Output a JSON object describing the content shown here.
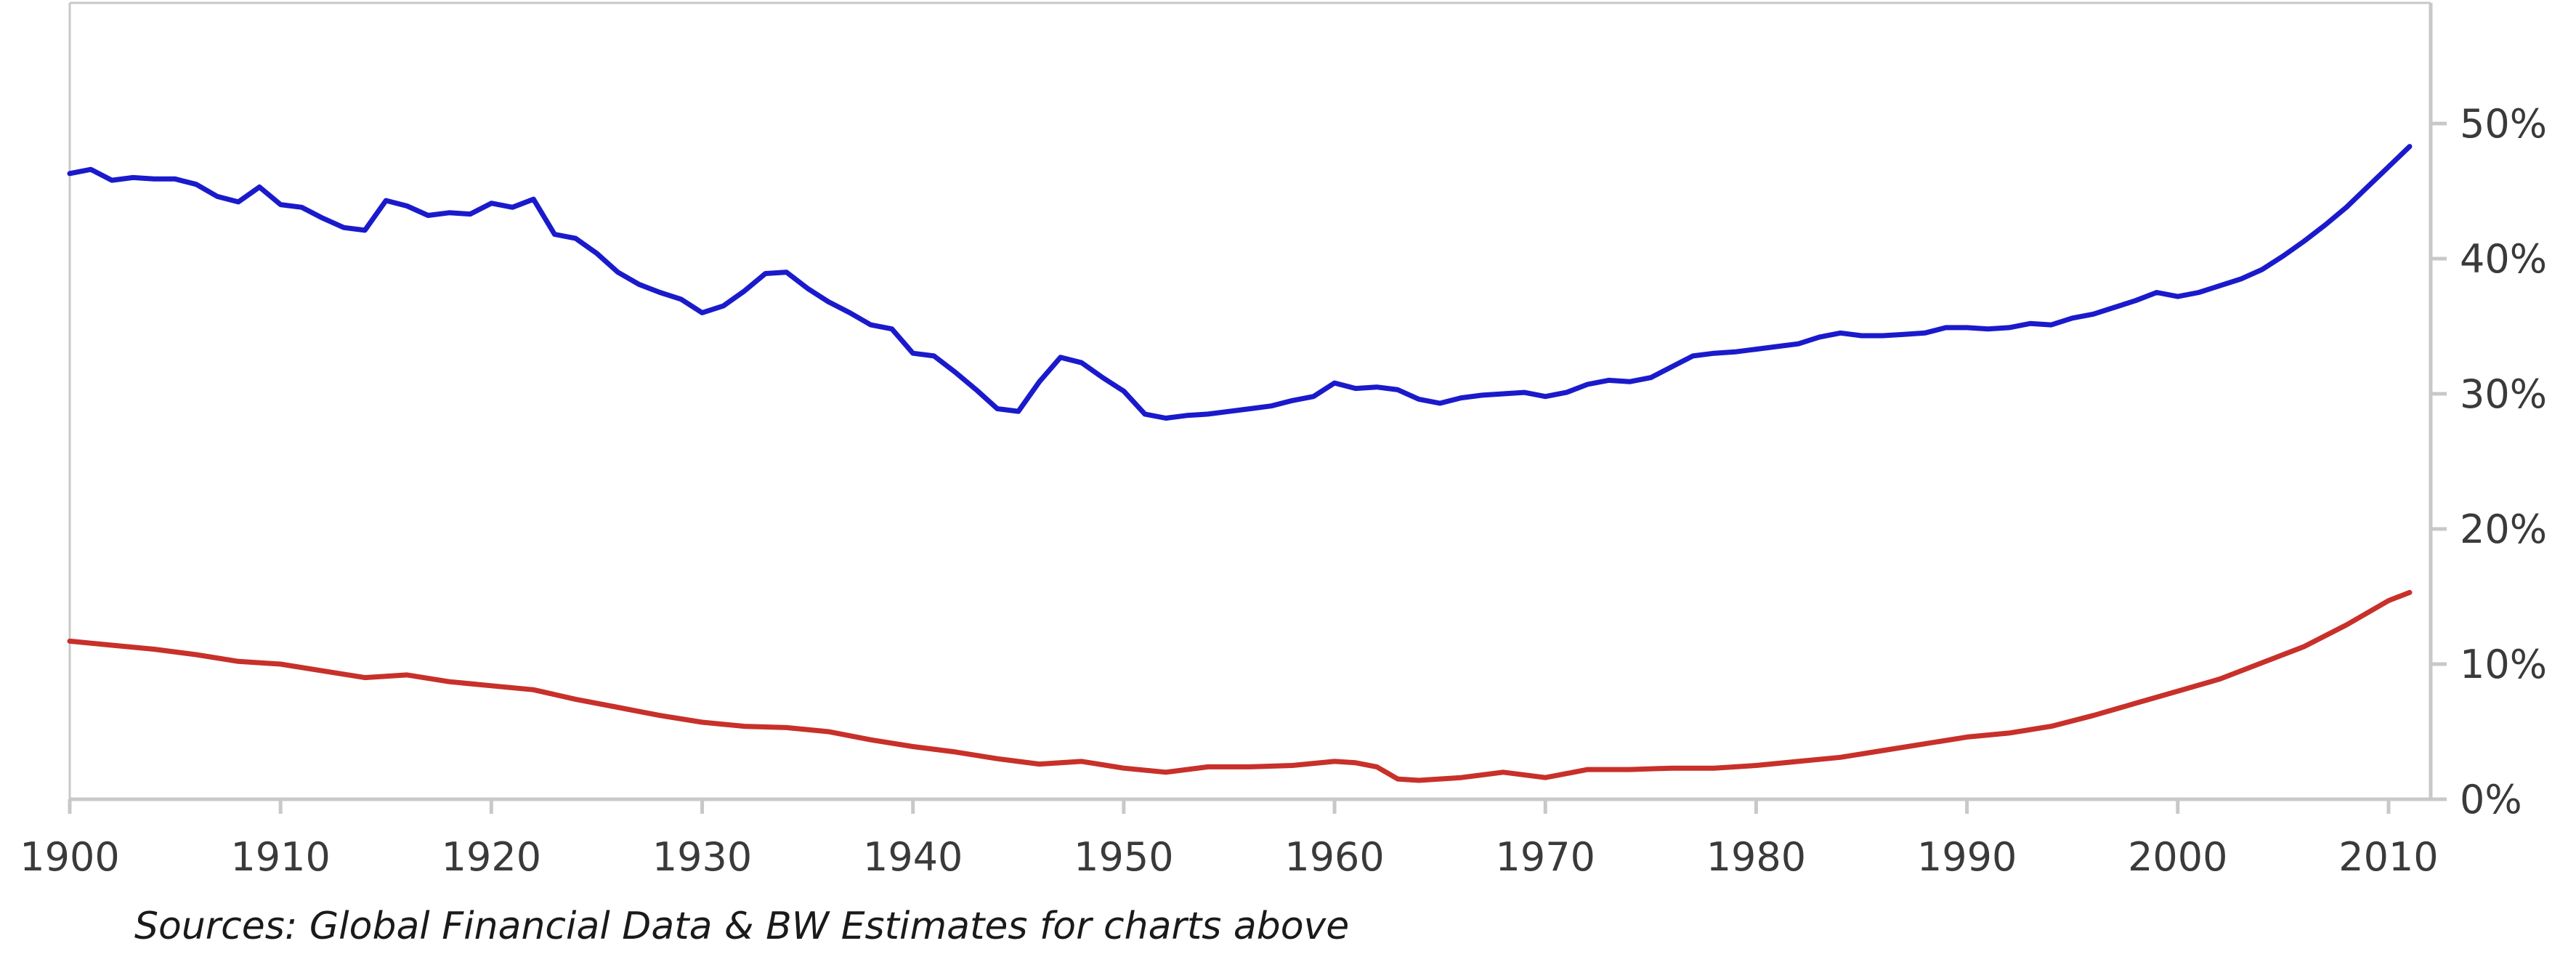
{
  "chart_data": {
    "type": "line",
    "title": "",
    "xlabel": "",
    "ylabel": "",
    "xlim": [
      1900,
      2012
    ],
    "ylim": [
      0,
      50
    ],
    "x_ticks": [
      1900,
      1910,
      1920,
      1930,
      1940,
      1950,
      1960,
      1970,
      1980,
      1990,
      2000,
      2010
    ],
    "x_tick_labels": [
      "1900",
      "1910",
      "1920",
      "1930",
      "1940",
      "1950",
      "1960",
      "1970",
      "1980",
      "1990",
      "2000",
      "2010"
    ],
    "y_ticks": [
      0,
      10,
      20,
      30,
      40,
      50
    ],
    "y_tick_labels": [
      "0%",
      "10%",
      "20%",
      "30%",
      "40%",
      "50%"
    ],
    "y_axis_position": "right",
    "grid": false,
    "series": [
      {
        "color": "#1a1acc",
        "x": [
          1900,
          1901,
          1902,
          1903,
          1904,
          1905,
          1906,
          1907,
          1908,
          1909,
          1910,
          1911,
          1912,
          1913,
          1914,
          1915,
          1916,
          1917,
          1918,
          1919,
          1920,
          1921,
          1922,
          1923,
          1924,
          1925,
          1926,
          1927,
          1928,
          1929,
          1930,
          1931,
          1932,
          1933,
          1934,
          1935,
          1936,
          1937,
          1938,
          1939,
          1940,
          1941,
          1942,
          1943,
          1944,
          1945,
          1946,
          1947,
          1948,
          1949,
          1950,
          1951,
          1952,
          1953,
          1954,
          1955,
          1956,
          1957,
          1958,
          1959,
          1960,
          1961,
          1962,
          1963,
          1964,
          1965,
          1966,
          1967,
          1968,
          1969,
          1970,
          1971,
          1972,
          1973,
          1974,
          1975,
          1976,
          1977,
          1978,
          1979,
          1980,
          1981,
          1982,
          1983,
          1984,
          1985,
          1986,
          1987,
          1988,
          1989,
          1990,
          1991,
          1992,
          1993,
          1994,
          1995,
          1996,
          1997,
          1998,
          1999,
          2000,
          2001,
          2002,
          2003,
          2004,
          2005,
          2006,
          2007,
          2008,
          2009,
          2010,
          2011
        ],
        "values": [
          46.3,
          46.6,
          45.8,
          46.0,
          45.9,
          45.9,
          45.5,
          44.6,
          44.2,
          45.3,
          44.0,
          43.8,
          43.0,
          42.3,
          42.1,
          44.3,
          43.9,
          43.2,
          43.4,
          43.3,
          44.1,
          43.8,
          44.4,
          41.8,
          41.5,
          40.4,
          39.0,
          38.1,
          37.5,
          37.0,
          36.0,
          36.5,
          37.6,
          38.9,
          39.0,
          37.8,
          36.8,
          36.0,
          35.1,
          34.8,
          33.0,
          32.8,
          31.6,
          30.3,
          28.9,
          28.7,
          30.9,
          32.7,
          32.3,
          31.2,
          30.2,
          28.5,
          28.2,
          28.4,
          28.5,
          28.7,
          28.9,
          29.1,
          29.5,
          29.8,
          30.8,
          30.4,
          30.5,
          30.3,
          29.6,
          29.3,
          29.7,
          29.9,
          30.0,
          30.1,
          29.8,
          30.1,
          30.7,
          31.0,
          30.9,
          31.2,
          32.0,
          32.8,
          33.0,
          33.1,
          33.3,
          33.5,
          33.7,
          34.2,
          34.5,
          34.3,
          34.3,
          34.4,
          34.5,
          34.9,
          34.9,
          34.8,
          34.9,
          35.2,
          35.1,
          35.6,
          35.9,
          36.4,
          36.9,
          37.5,
          37.2,
          37.5,
          38.0,
          38.5,
          39.2,
          40.2,
          41.3,
          42.5,
          43.8,
          45.3,
          46.8,
          48.3
        ]
      },
      {
        "color": "#c8302a",
        "x": [
          1900,
          1902,
          1904,
          1906,
          1908,
          1910,
          1912,
          1914,
          1915,
          1916,
          1918,
          1920,
          1922,
          1924,
          1926,
          1928,
          1930,
          1932,
          1934,
          1936,
          1938,
          1940,
          1942,
          1944,
          1946,
          1948,
          1950,
          1952,
          1954,
          1956,
          1958,
          1960,
          1961,
          1962,
          1963,
          1964,
          1966,
          1968,
          1970,
          1972,
          1974,
          1976,
          1978,
          1980,
          1982,
          1984,
          1986,
          1988,
          1990,
          1992,
          1994,
          1996,
          1998,
          2000,
          2002,
          2004,
          2006,
          2008,
          2010,
          2011
        ],
        "values": [
          11.7,
          11.4,
          11.1,
          10.7,
          10.2,
          10.0,
          9.5,
          9.0,
          9.1,
          9.2,
          8.7,
          8.4,
          8.1,
          7.4,
          6.8,
          6.2,
          5.7,
          5.4,
          5.3,
          5.0,
          4.4,
          3.9,
          3.5,
          3.0,
          2.6,
          2.8,
          2.3,
          2.0,
          2.4,
          2.4,
          2.5,
          2.8,
          2.7,
          2.4,
          1.5,
          1.4,
          1.6,
          2.0,
          1.6,
          2.2,
          2.2,
          2.3,
          2.3,
          2.5,
          2.8,
          3.1,
          3.6,
          4.1,
          4.6,
          4.9,
          5.4,
          6.2,
          7.1,
          8.0,
          8.9,
          10.1,
          11.3,
          12.9,
          14.7,
          15.3
        ]
      }
    ]
  },
  "footnote": "Sources: Global Financial Data & BW Estimates for charts above"
}
